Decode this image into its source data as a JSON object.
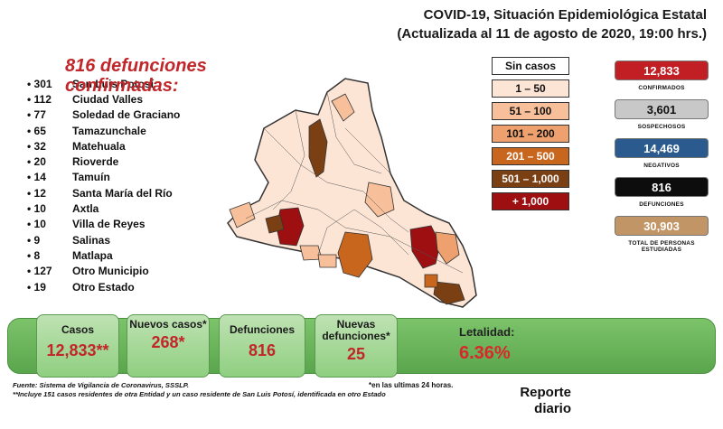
{
  "header": {
    "title_line1": "COVID-19, Situación Epidemiológica Estatal",
    "title_line2": "(Actualizada al 11 de agosto de 2020, 19:00 hrs.)"
  },
  "deaths_headline": "816 defunciones confirmadas:",
  "municipalities": [
    {
      "count": "301",
      "name": "San Luis Potosí"
    },
    {
      "count": "112",
      "name": "Ciudad Valles"
    },
    {
      "count": "77",
      "name": "Soledad de Graciano"
    },
    {
      "count": "65",
      "name": "Tamazunchale"
    },
    {
      "count": "32",
      "name": "Matehuala"
    },
    {
      "count": "20",
      "name": "Rioverde"
    },
    {
      "count": "14",
      "name": "Tamuín"
    },
    {
      "count": "12",
      "name": "Santa María del Río"
    },
    {
      "count": "10",
      "name": "Axtla"
    },
    {
      "count": "10",
      "name": "Villa de Reyes"
    },
    {
      "count": "9",
      "name": "Salinas"
    },
    {
      "count": "8",
      "name": "Matlapa"
    },
    {
      "count": "127",
      "name": "Otro Municipio"
    },
    {
      "count": "19",
      "name": "Otro Estado"
    }
  ],
  "legend": [
    {
      "label": "Sin casos",
      "color": "#ffffff",
      "text_color": "#111111"
    },
    {
      "label": "1 – 50",
      "color": "#fde5d6",
      "text_color": "#111111"
    },
    {
      "label": "51 – 100",
      "color": "#f7c09b",
      "text_color": "#111111"
    },
    {
      "label": "101 – 200",
      "color": "#eea16e",
      "text_color": "#111111"
    },
    {
      "label": "201 – 500",
      "color": "#c9661d",
      "text_color": "#ffffff"
    },
    {
      "label": "501 – 1,000",
      "color": "#7b3f14",
      "text_color": "#ffffff"
    },
    {
      "label": "+ 1,000",
      "color": "#9e0f12",
      "text_color": "#ffffff"
    }
  ],
  "stats": [
    {
      "value": "12,833",
      "label": "CONFIRMADOS",
      "color": "#c21f24"
    },
    {
      "value": "3,601",
      "label": "SOSPECHOSOS",
      "color": "#c8c8c8"
    },
    {
      "value": "14,469",
      "label": "NEGATIVOS",
      "color": "#2b5a8e"
    },
    {
      "value": "816",
      "label": "DEFUNCIONES",
      "color": "#0d0d0d"
    },
    {
      "value": "30,903",
      "label": "TOTAL DE PERSONAS ESTUDIADAS",
      "color": "#c19565"
    }
  ],
  "summary": {
    "cases_label": "Casos",
    "cases_value": "12,833**",
    "new_cases_label": "Nuevos casos*",
    "new_cases_value": "268*",
    "deaths_label": "Defunciones",
    "deaths_value": "816",
    "new_deaths_label": "Nuevas defunciones*",
    "new_deaths_value": "25",
    "lethality_label": "Letalidad:",
    "lethality_value": "6.36%"
  },
  "footer": {
    "source": "Fuente: Sistema de Vigilancia de Coronavirus, SSSLP.",
    "note_24h": "*en las ultimas 24 horas.",
    "note_residents": "**Incluye 151 casos residentes de otra Entidad y un caso residente de San Luis Potosí, identificada en otro Estado",
    "report_label": "Reporte diario"
  },
  "colors": {
    "accent_red": "#c0262a",
    "band_green": "#6cb95c",
    "panel_green": "#a9d99b"
  }
}
